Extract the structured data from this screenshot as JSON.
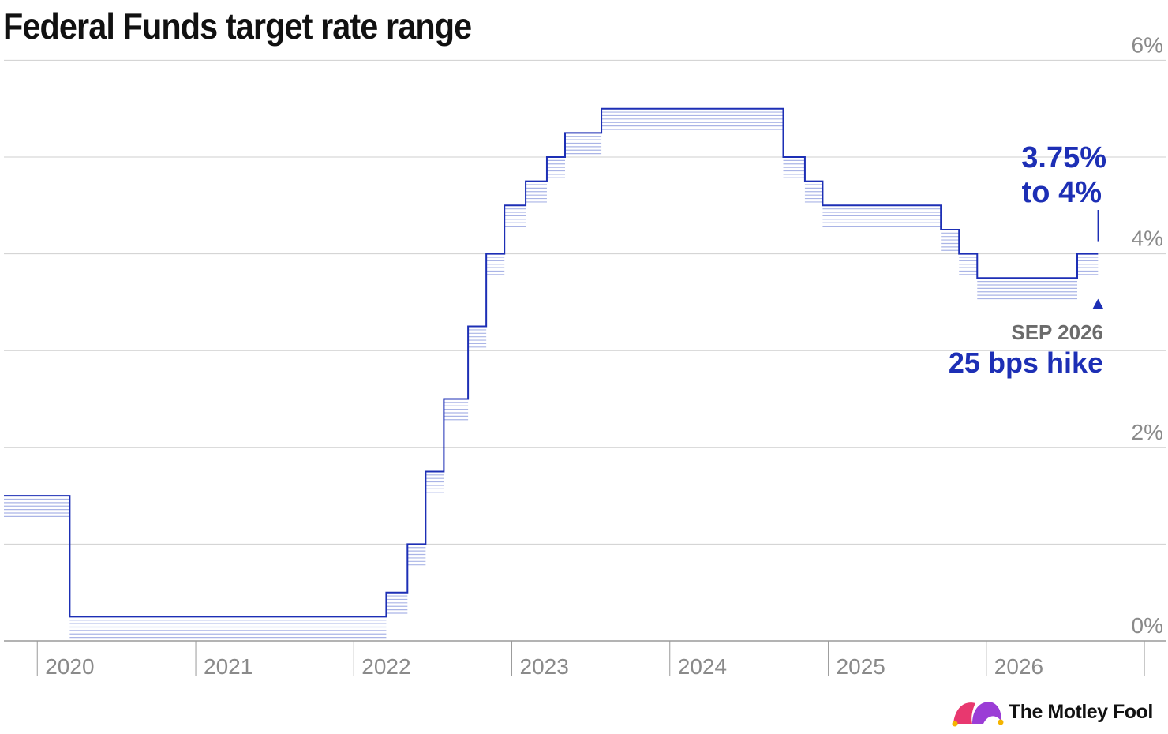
{
  "colors": {
    "line": "#1d2fb5",
    "band": "#aab4e6",
    "grid": "#cfcfcf",
    "axis": "#9a9a9a",
    "tick_text": "#8a8a8a",
    "annotation_value": "#1d2fb5",
    "annotation_date": "#6b6b6b"
  },
  "chart_data": {
    "type": "area",
    "title": "Federal Funds target rate range",
    "xlabel": "",
    "ylabel": "",
    "ylim": [
      0,
      6
    ],
    "xlim": [
      "2019-10-16",
      "2026-12-21"
    ],
    "y_ticks": [
      0,
      2,
      4,
      6
    ],
    "y_tick_labels": [
      "0%",
      "2%",
      "4%",
      "6%"
    ],
    "y_gridlines": [
      0,
      1,
      2,
      3,
      4,
      5,
      6
    ],
    "x_ticks": [
      "2020-01-01",
      "2021-01-01",
      "2022-01-01",
      "2023-01-01",
      "2024-01-01",
      "2025-01-01",
      "2026-01-01"
    ],
    "x_tick_labels": [
      "2020",
      "2021",
      "2022",
      "2023",
      "2024",
      "2025",
      "2026"
    ],
    "grid": true,
    "series": [
      {
        "steps": [
          {
            "start": "2019-10-16",
            "lower": 1.25,
            "upper": 1.5
          },
          {
            "start": "2020-03-16",
            "lower": 0.0,
            "upper": 0.25
          },
          {
            "start": "2022-03-17",
            "lower": 0.25,
            "upper": 0.5
          },
          {
            "start": "2022-05-05",
            "lower": 0.75,
            "upper": 1.0
          },
          {
            "start": "2022-06-16",
            "lower": 1.5,
            "upper": 1.75
          },
          {
            "start": "2022-07-28",
            "lower": 2.25,
            "upper": 2.5
          },
          {
            "start": "2022-09-22",
            "lower": 3.0,
            "upper": 3.25
          },
          {
            "start": "2022-11-03",
            "lower": 3.75,
            "upper": 4.0
          },
          {
            "start": "2022-12-15",
            "lower": 4.25,
            "upper": 4.5
          },
          {
            "start": "2023-02-02",
            "lower": 4.5,
            "upper": 4.75
          },
          {
            "start": "2023-03-23",
            "lower": 4.75,
            "upper": 5.0
          },
          {
            "start": "2023-05-04",
            "lower": 5.0,
            "upper": 5.25
          },
          {
            "start": "2023-07-27",
            "lower": 5.25,
            "upper": 5.5
          },
          {
            "start": "2024-09-19",
            "lower": 4.75,
            "upper": 5.0
          },
          {
            "start": "2024-11-08",
            "lower": 4.5,
            "upper": 4.75
          },
          {
            "start": "2024-12-19",
            "lower": 4.25,
            "upper": 4.5
          },
          {
            "start": "2025-09-18",
            "lower": 4.0,
            "upper": 4.25
          },
          {
            "start": "2025-10-30",
            "lower": 3.75,
            "upper": 4.0
          },
          {
            "start": "2025-12-11",
            "lower": 3.5,
            "upper": 3.75
          },
          {
            "start": "2026-07-30",
            "lower": 3.75,
            "upper": 4.0
          }
        ],
        "end": "2026-09-16"
      }
    ],
    "annotations": [
      {
        "value_lines": [
          "3.75%",
          "to 4%"
        ],
        "date_label": "SEP 2026",
        "event_label": "25 bps hike",
        "x": "2026-09-16",
        "y": 4.0
      }
    ]
  },
  "brand": {
    "name": "The Motley Fool",
    "logo_icon": "jester-cap-icon",
    "logo_colors": [
      "#e8386f",
      "#9b3dd6"
    ]
  }
}
